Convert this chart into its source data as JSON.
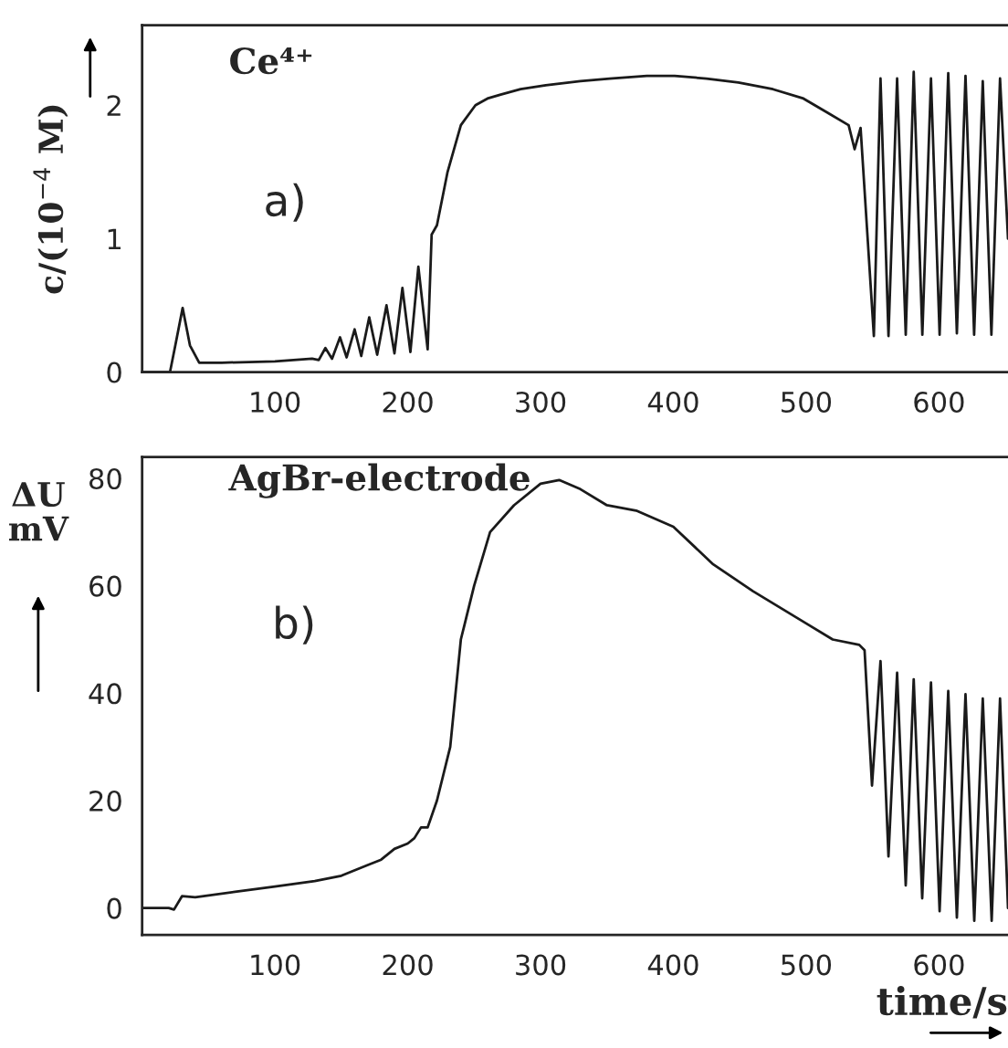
{
  "chart_data": [
    {
      "type": "line",
      "ylabel": "c/(10$^{−4}$ M)",
      "annotations": [
        "Ce⁴⁺",
        "a)"
      ],
      "x": [
        0,
        21,
        25,
        30.5,
        36,
        43,
        60,
        100,
        128,
        133,
        138,
        143,
        149,
        154,
        160,
        165,
        171,
        177,
        184,
        190,
        196,
        202,
        208,
        215,
        218,
        222,
        230,
        240,
        251,
        260,
        270,
        285,
        304,
        330,
        352,
        380,
        401,
        425,
        449,
        475,
        498,
        515,
        532,
        536.5,
        541,
        551,
        556,
        562,
        568.5,
        575,
        581,
        587.5,
        594,
        600.5,
        607,
        613.5,
        620,
        626.5,
        633,
        639.5,
        646,
        652
      ],
      "series": [
        {
          "color": "#1a1a1a",
          "values": [
            0,
            0,
            0.2,
            0.48,
            0.2,
            0.07,
            0.07,
            0.08,
            0.1,
            0.09,
            0.18,
            0.1,
            0.26,
            0.11,
            0.32,
            0.12,
            0.41,
            0.13,
            0.5,
            0.14,
            0.63,
            0.15,
            0.79,
            0.17,
            1.03,
            1.1,
            1.5,
            1.85,
            2.0,
            2.05,
            2.08,
            2.12,
            2.15,
            2.18,
            2.2,
            2.22,
            2.22,
            2.2,
            2.17,
            2.12,
            2.05,
            1.95,
            1.85,
            1.67,
            1.83,
            0.27,
            2.2,
            0.27,
            2.2,
            0.28,
            2.25,
            0.28,
            2.2,
            0.28,
            2.24,
            0.29,
            2.22,
            0.28,
            2.18,
            0.28,
            2.2,
            1.0
          ]
        }
      ],
      "xlim": [
        0,
        652
      ],
      "ylim": [
        0,
        2.6
      ],
      "xticks": [
        100,
        200,
        300,
        400,
        500,
        600
      ],
      "yticks": [
        0,
        1,
        2
      ],
      "grid": false
    },
    {
      "type": "line",
      "ylabel": "ΔU\nmV",
      "xlabel": "time/s",
      "annotations": [
        "AgBr-electrode",
        "b)"
      ],
      "x": [
        0,
        20,
        24,
        30,
        40,
        70,
        100,
        130,
        150,
        170,
        180,
        190,
        200,
        205,
        210,
        215,
        222,
        232,
        240,
        250,
        262,
        280,
        300,
        314,
        330,
        350,
        372,
        400,
        430,
        460,
        500,
        520,
        540,
        544,
        549.6,
        556,
        562,
        568.5,
        575,
        581,
        587.4,
        594,
        600.5,
        607,
        613.5,
        620,
        626.6,
        633,
        639.7,
        646,
        652
      ],
      "series": [
        {
          "color": "#1a1a1a",
          "values": [
            0,
            0,
            -0.3,
            2.2,
            2,
            3,
            4,
            5,
            6,
            8,
            9,
            11,
            12,
            13,
            15,
            15,
            20,
            30,
            50,
            60,
            70,
            75,
            79,
            79.7,
            78,
            75,
            74,
            71,
            64,
            59,
            53,
            50,
            49,
            48,
            22.8,
            46,
            9.6,
            43.8,
            4.2,
            42.6,
            1.8,
            42,
            -0.6,
            40.4,
            -1.8,
            39.8,
            -2.4,
            39,
            -2.4,
            39,
            0
          ]
        }
      ],
      "xlim": [
        0,
        652
      ],
      "ylim": [
        -5,
        84
      ],
      "xticks": [
        100,
        200,
        300,
        400,
        500,
        600
      ],
      "yticks": [
        0,
        20,
        40,
        60,
        80
      ],
      "grid": false
    }
  ]
}
